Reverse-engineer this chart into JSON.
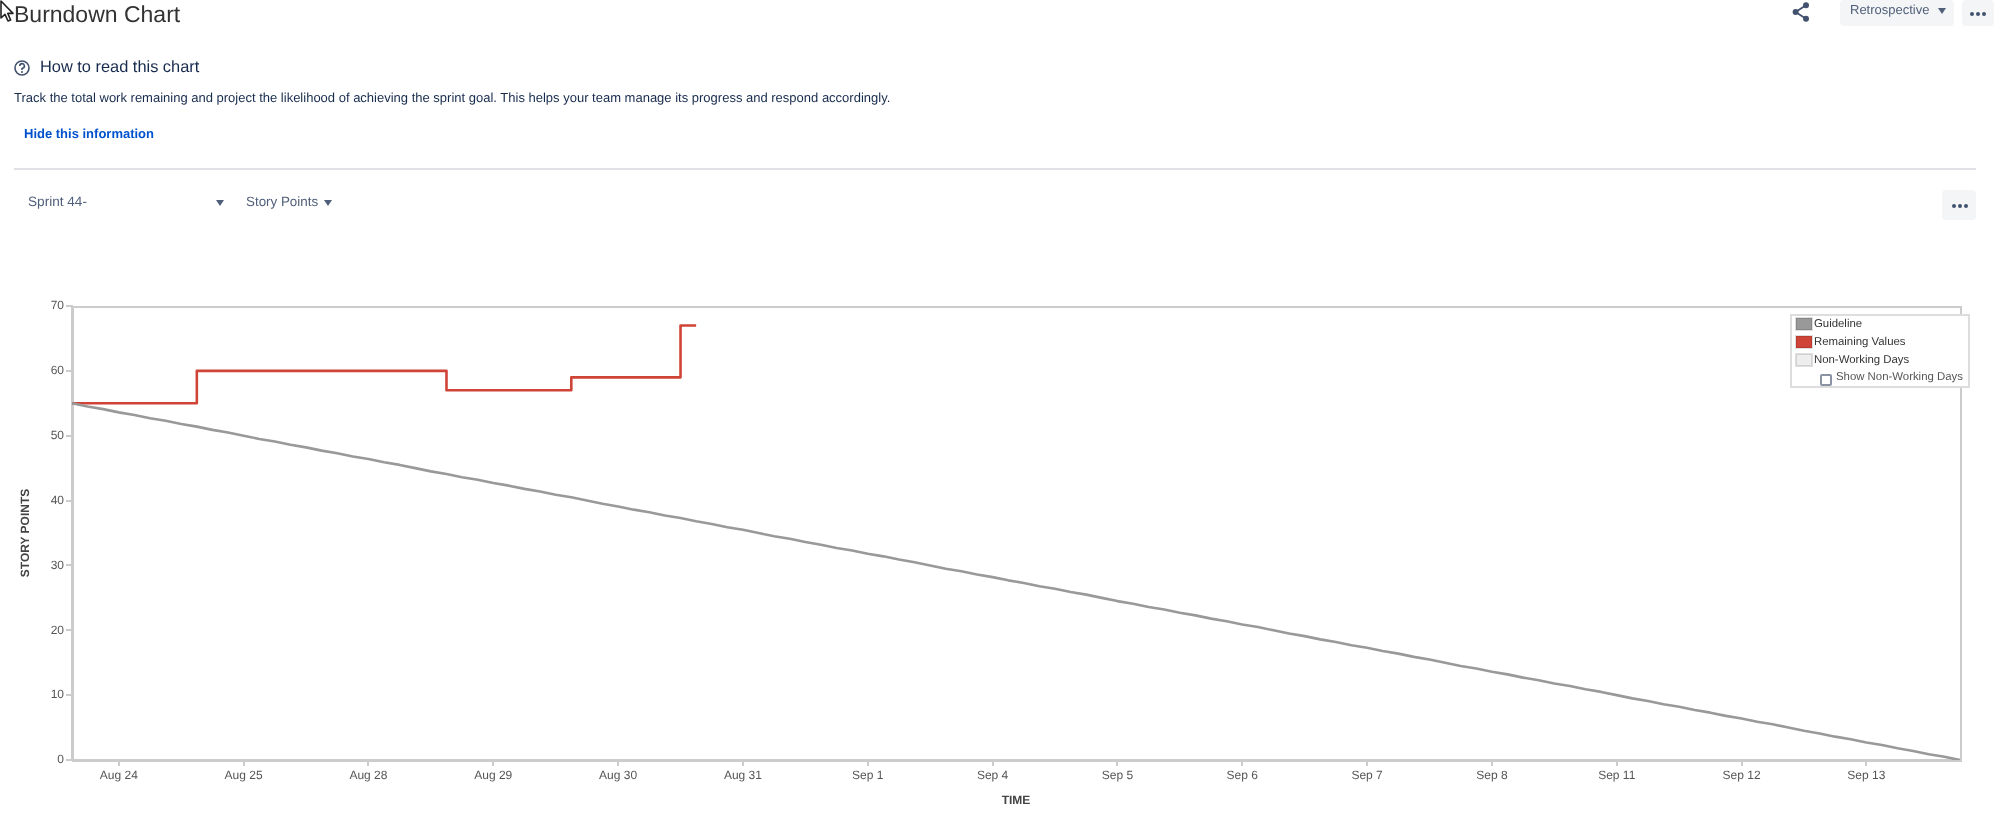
{
  "chart_data": {
    "type": "line",
    "title": "Burndown Chart",
    "subtitle": "How to read this chart",
    "xlabel": "TIME",
    "ylabel": "STORY POINTS",
    "annotations": [
      "Track the total work remaining and project the likelihood of achieving the sprint goal. This helps your team manage its progress and respond accordingly.",
      "Hide this information",
      "Sprint 44-",
      "Story Points",
      "Retrospective",
      "Show Non-Working Days"
    ],
    "categories": [
      null,
      null,
      null,
      "Aug 24",
      null,
      null,
      null,
      null,
      null,
      null,
      null,
      "Aug 25",
      null,
      null,
      null,
      null,
      null,
      null,
      null,
      "Aug 28",
      null,
      null,
      null,
      null,
      null,
      null,
      null,
      "Aug 29",
      null,
      null,
      null,
      null,
      null,
      null,
      null,
      "Aug 30",
      null,
      null,
      null,
      null,
      null,
      null,
      null,
      "Aug 31",
      null,
      null,
      null,
      null,
      null,
      null,
      null,
      "Sep 1",
      null,
      null,
      null,
      null,
      null,
      null,
      null,
      "Sep 4",
      null,
      null,
      null,
      null,
      null,
      null,
      null,
      "Sep 5",
      null,
      null,
      null,
      null,
      null,
      null,
      null,
      "Sep 6",
      null,
      null,
      null,
      null,
      null,
      null,
      null,
      "Sep 7",
      null,
      null,
      null,
      null,
      null,
      null,
      null,
      "Sep 8",
      null,
      null,
      null,
      null,
      null,
      null,
      null,
      "Sep 11",
      null,
      null,
      null,
      null,
      null,
      null,
      null,
      "Sep 12",
      null,
      null,
      null,
      null,
      null,
      null,
      null,
      "Sep 13",
      null,
      null,
      null,
      null,
      null,
      null
    ],
    "ylim": [
      0,
      70
    ],
    "yticks": [
      0,
      10,
      20,
      30,
      40,
      50,
      60,
      70
    ],
    "series": [
      {
        "name": "Guideline",
        "color": "#999999",
        "values": [
          55,
          54.5,
          54.1,
          53.6,
          53.2,
          52.7,
          52.3,
          51.8,
          51.4,
          50.9,
          50.5,
          50,
          49.5,
          49.1,
          48.6,
          48.2,
          47.7,
          47.3,
          46.8,
          46.4,
          45.9,
          45.5,
          45,
          44.5,
          44.1,
          43.6,
          43.2,
          42.7,
          42.3,
          41.8,
          41.4,
          40.9,
          40.5,
          40,
          39.5,
          39.1,
          38.6,
          38.2,
          37.7,
          37.3,
          36.8,
          36.4,
          35.9,
          35.5,
          35,
          34.5,
          34.1,
          33.6,
          33.2,
          32.7,
          32.3,
          31.8,
          31.4,
          30.9,
          30.5,
          30,
          29.5,
          29.1,
          28.6,
          28.2,
          27.7,
          27.3,
          26.8,
          26.4,
          25.9,
          25.5,
          25,
          24.5,
          24.1,
          23.6,
          23.2,
          22.7,
          22.3,
          21.8,
          21.4,
          20.9,
          20.5,
          20,
          19.5,
          19.1,
          18.6,
          18.2,
          17.7,
          17.3,
          16.8,
          16.4,
          15.9,
          15.5,
          15,
          14.5,
          14.1,
          13.6,
          13.2,
          12.7,
          12.3,
          11.8,
          11.4,
          10.9,
          10.5,
          10,
          9.5,
          9.1,
          8.6,
          8.2,
          7.7,
          7.3,
          6.8,
          6.4,
          5.9,
          5.5,
          5,
          4.5,
          4.1,
          3.6,
          3.2,
          2.7,
          2.3,
          1.8,
          1.4,
          0.9,
          0.5,
          0
        ]
      },
      {
        "name": "Remaining Values",
        "type": "step",
        "color": "#d04437",
        "values": [
          55,
          55,
          55,
          55,
          55,
          55,
          55,
          55,
          60,
          60,
          60,
          60,
          60,
          60,
          60,
          60,
          60,
          60,
          60,
          60,
          60,
          60,
          60,
          60,
          57,
          57,
          57,
          57,
          57,
          57,
          57,
          57,
          59,
          59,
          59,
          59,
          59,
          59,
          59,
          67,
          67,
          null,
          null,
          null,
          null,
          null,
          null,
          null,
          null,
          null,
          null,
          null,
          null,
          null,
          null,
          null,
          null,
          null,
          null,
          null,
          null,
          null,
          null,
          null,
          null,
          null,
          null,
          null,
          null,
          null,
          null,
          null,
          null,
          null,
          null,
          null,
          null,
          null,
          null,
          null,
          null,
          null,
          null,
          null,
          null,
          null,
          null,
          null,
          null,
          null,
          null,
          null,
          null,
          null,
          null,
          null,
          null,
          null,
          null,
          null,
          null,
          null,
          null,
          null,
          null,
          null,
          null,
          null,
          null,
          null,
          null,
          null,
          null,
          null,
          null,
          null,
          null,
          null,
          null,
          null,
          null,
          null
        ]
      },
      {
        "name": "Non-Working Days",
        "type": "area",
        "color": "#eeeeee",
        "values": [
          null,
          null,
          null,
          null,
          null,
          null,
          null,
          null,
          null,
          null,
          null,
          null,
          null,
          null,
          null,
          null,
          null,
          null,
          null,
          null,
          null,
          null,
          null,
          null,
          null,
          null,
          null,
          null,
          null,
          null,
          null,
          null,
          null,
          null,
          null,
          null,
          null,
          null,
          null,
          null,
          null,
          null,
          null,
          null,
          null,
          null,
          null,
          null,
          null,
          null,
          null,
          null,
          null,
          null,
          null,
          null,
          null,
          null,
          null,
          null,
          null,
          null,
          null,
          null,
          null,
          null,
          null,
          null,
          null,
          null,
          null,
          null,
          null,
          null,
          null,
          null,
          null,
          null,
          null,
          null,
          null,
          null,
          null,
          null,
          null,
          null,
          null,
          null,
          null,
          null,
          null,
          null,
          null,
          null,
          null,
          null,
          null,
          null,
          null,
          null,
          null,
          null,
          null,
          null,
          null,
          null,
          null,
          null,
          null,
          null,
          null,
          null,
          null,
          null,
          null,
          null,
          null,
          null,
          null,
          null,
          null,
          null
        ]
      }
    ],
    "legend": "top right"
  }
}
